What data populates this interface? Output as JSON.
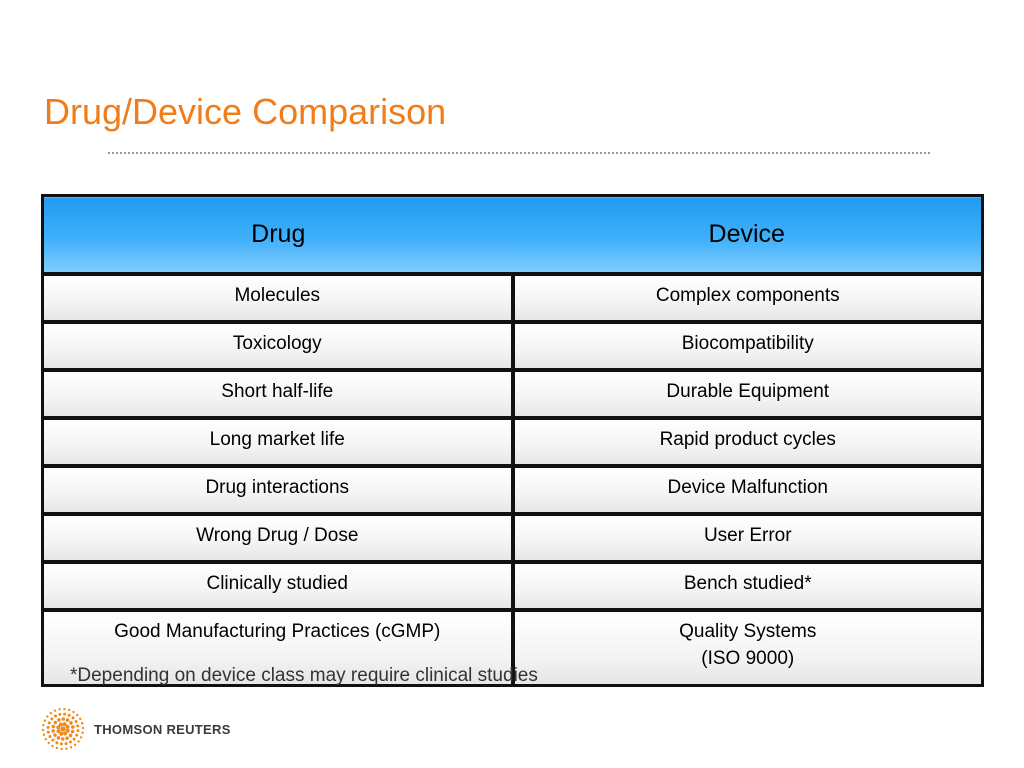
{
  "slide": {
    "title": "Drug/Device Comparison",
    "footnote": "*Depending on device class may require clinical studies"
  },
  "table": {
    "headers": [
      "Drug",
      "Device"
    ],
    "rows": [
      [
        "Molecules",
        "Complex components"
      ],
      [
        "Toxicology",
        "Biocompatibility"
      ],
      [
        "Short half-life",
        "Durable Equipment"
      ],
      [
        "Long market life",
        "Rapid product cycles"
      ],
      [
        "Drug interactions",
        "Device Malfunction"
      ],
      [
        "Wrong Drug / Dose",
        "User Error"
      ],
      [
        "Clinically studied",
        "Bench studied*"
      ],
      [
        "Good Manufacturing Practices (cGMP)",
        "Quality Systems\n(ISO 9000)"
      ]
    ]
  },
  "logo": {
    "text": "THOMSON REUTERS",
    "icon": "thomson-reuters-dot-icon"
  },
  "colors": {
    "title": "#f07d1a",
    "header_fill": "#40b0fa",
    "logo_orange": "#f08a1e"
  }
}
